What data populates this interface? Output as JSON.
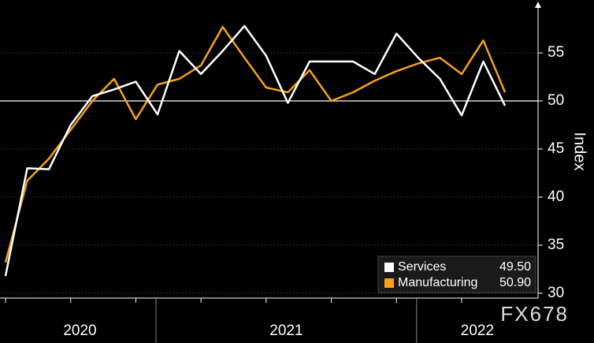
{
  "chart_data": {
    "type": "line",
    "y_label": "Index",
    "watermark": "FX678",
    "categories": [
      null,
      null,
      null,
      null,
      null,
      null,
      null,
      null,
      null,
      null,
      null,
      null,
      null,
      null,
      null,
      null,
      null,
      null,
      null,
      null,
      null,
      null,
      null,
      null
    ],
    "year_groups": [
      {
        "label": "2020",
        "start": 0,
        "end": 6
      },
      {
        "label": "2021",
        "start": 7,
        "end": 18
      },
      {
        "label": "2022",
        "start": 19,
        "end": 23
      }
    ],
    "series": [
      {
        "name": "Services",
        "color": "#ffffff",
        "last_label": "49.50",
        "values": [
          31.8,
          43.0,
          42.9,
          47.5,
          50.5,
          51.2,
          52.0,
          48.6,
          55.2,
          52.8,
          55.2,
          57.8,
          54.7,
          49.8,
          54.1,
          54.1,
          54.1,
          52.8,
          57.0,
          54.5,
          52.3,
          48.5,
          54.1,
          49.5
        ]
      },
      {
        "name": "Manufacturing",
        "color": "#f7a11a",
        "last_label": "50.90",
        "values": [
          33.2,
          41.7,
          44.0,
          47.0,
          50.0,
          52.3,
          48.1,
          51.7,
          52.3,
          53.7,
          57.7,
          54.5,
          51.4,
          50.9,
          53.2,
          50.0,
          50.9,
          52.1,
          53.1,
          53.9,
          54.5,
          52.8,
          56.3,
          50.9
        ]
      }
    ],
    "ylim": [
      29.5,
      60.5
    ],
    "yticks": [
      30,
      35,
      40,
      45,
      50,
      55
    ],
    "reference_line": 50,
    "grid": true
  }
}
